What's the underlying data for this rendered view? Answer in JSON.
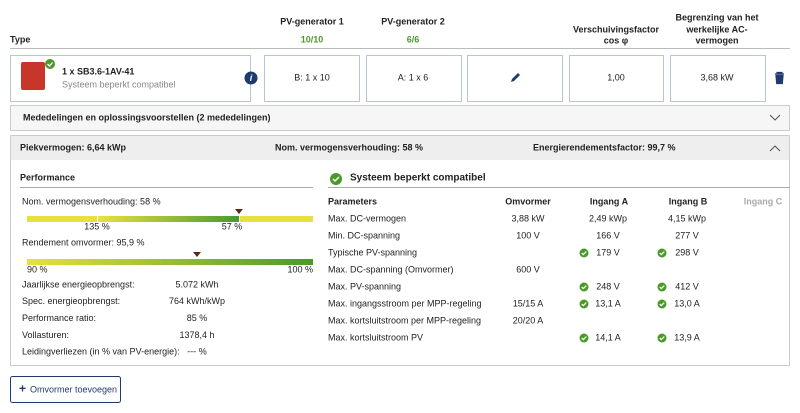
{
  "header": {
    "type": "Type",
    "pv1": "PV-generator 1",
    "pv1_count": "10/10",
    "pv2": "PV-generator 2",
    "pv2_count": "6/6",
    "cosphi": [
      "Verschuivingsfactor",
      "cos φ"
    ],
    "limit": [
      "Begrenzing van het",
      "werkelijke AC-",
      "vermogen"
    ]
  },
  "inverter": {
    "name": "1 x SB3.6-1AV-41",
    "status": "Systeem beperkt compatibel",
    "pv1": "B: 1 x 10",
    "pv2": "A: 1 x 6",
    "cosphi": "1,00",
    "limit": "3,68 kW"
  },
  "messages": "Mededelingen en oplossingsvoorstellen (2 mededelingen)",
  "summary": [
    "Piekvermogen: 6,64 kWp",
    "Nom. vermogensverhouding: 58 %",
    "Energierendementsfactor: 99,7 %"
  ],
  "performance": {
    "title": "Performance",
    "ratio_label": "Nom. vermogensverhouding: 58 %",
    "ratio_ticks": [
      "135 %",
      "57 %"
    ],
    "efficiency_label": "Rendement omvormer: 95,9 %",
    "efficiency_ticks": [
      "90 %",
      "100 %"
    ],
    "rows": [
      [
        "Jaarlijkse energieopbrengst:",
        "5.072 kWh"
      ],
      [
        "Spec. energieopbrengst:",
        "764 kWh/kWp"
      ],
      [
        "Performance ratio:",
        "85 %"
      ],
      [
        "Vollasturen:",
        "1378,4 h"
      ],
      [
        "Leidingverliezen (in % van PV-energie):",
        "--- %"
      ]
    ]
  },
  "compat": {
    "title": "Systeem beperkt compatibel",
    "columns": [
      "Parameters",
      "Omvormer",
      "Ingang A",
      "Ingang B",
      "Ingang C"
    ],
    "rows": [
      {
        "label": "Max. DC-vermogen",
        "inverter": "3,88 kW",
        "a": "2,49 kWp",
        "b": "4,15 kWp",
        "ok": false
      },
      {
        "label": "Min. DC-spanning",
        "inverter": "100 V",
        "a": "166 V",
        "b": "277 V",
        "ok": false
      },
      {
        "label": "Typische PV-spanning",
        "inverter": "",
        "a": "179 V",
        "b": "298 V",
        "ok": true
      },
      {
        "label": "Max. DC-spanning (Omvormer)",
        "inverter": "600 V",
        "a": "",
        "b": "",
        "ok": false
      },
      {
        "label": "Max. PV-spanning",
        "inverter": "",
        "a": "248 V",
        "b": "412 V",
        "ok": true
      },
      {
        "label": "Max. ingangsstroom per MPP-regeling",
        "inverter": "15/15 A",
        "a": "13,1 A",
        "b": "13,0 A",
        "ok": true
      },
      {
        "label": "Max. kortsluitstroom per MPP-regeling",
        "inverter": "20/20 A",
        "a": "",
        "b": "",
        "ok": false
      },
      {
        "label": "Max. kortsluitstroom PV",
        "inverter": "",
        "a": "14,1 A",
        "b": "13,9 A",
        "ok": true
      }
    ]
  },
  "button": "Omvormer toevoegen"
}
